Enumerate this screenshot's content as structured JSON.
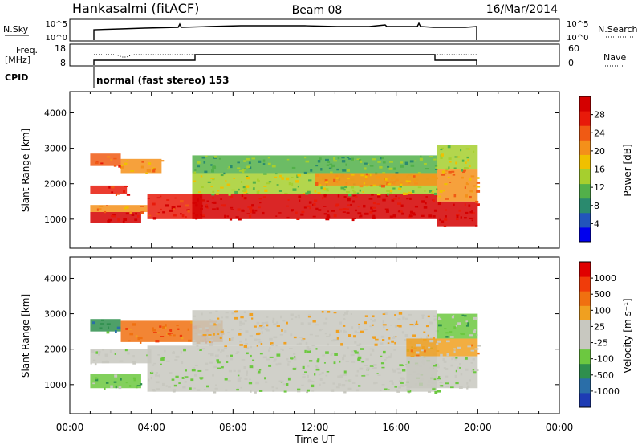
{
  "header": {
    "station": "Hankasalmi (fitACF)",
    "beam": "Beam 08",
    "date": "16/Mar/2014"
  },
  "summary": {
    "nsky_label": "N.Sky",
    "nsearch_label": "N.Search",
    "noise_ticks": [
      "10^5",
      "10^0"
    ],
    "freq_label_1": "Freq.",
    "freq_label_2": "[MHz]",
    "freq_ticks": [
      "18",
      "8"
    ],
    "nave_label": "Nave",
    "nave_ticks": [
      "60",
      "0"
    ],
    "cpid_label": "CPID",
    "cpid_value": "normal (fast stereo) 153"
  },
  "chart_data": [
    {
      "type": "heatmap",
      "title": "",
      "ylabel": "Slant Range [km]",
      "xlabel": "",
      "y_ticks": [
        1000,
        2000,
        3000,
        4000
      ],
      "ylim": [
        180,
        4600
      ],
      "colorbar_label": "Power [dB]",
      "colorbar_ticks": [
        4,
        8,
        12,
        16,
        20,
        24,
        28
      ],
      "colorbar_colors": [
        "#0000ee",
        "#2255bb",
        "#2a8a6e",
        "#52b04a",
        "#a6cf2e",
        "#f0c000",
        "#f4901a",
        "#f05a14",
        "#e81a0a",
        "#d40000"
      ],
      "bands": [
        {
          "t0": 1.0,
          "t1": 3.5,
          "r0": 900,
          "r1": 1200,
          "level": 9
        },
        {
          "t0": 1.0,
          "t1": 3.8,
          "r0": 1200,
          "r1": 1400,
          "level": 6
        },
        {
          "t0": 1.0,
          "t1": 2.8,
          "r0": 1700,
          "r1": 1950,
          "level": 8
        },
        {
          "t0": 1.0,
          "t1": 2.5,
          "r0": 2500,
          "r1": 2850,
          "level": 7
        },
        {
          "t0": 2.5,
          "t1": 4.5,
          "r0": 2300,
          "r1": 2700,
          "level": 6
        },
        {
          "t0": 3.8,
          "t1": 6.5,
          "r0": 1000,
          "r1": 1700,
          "level": 8
        },
        {
          "t0": 6.0,
          "t1": 18.0,
          "r0": 1000,
          "r1": 1700,
          "level": 9
        },
        {
          "t0": 6.0,
          "t1": 18.0,
          "r0": 1700,
          "r1": 2300,
          "level": 4
        },
        {
          "t0": 6.0,
          "t1": 18.0,
          "r0": 2300,
          "r1": 2800,
          "level": 3
        },
        {
          "t0": 12.0,
          "t1": 18.0,
          "r0": 1950,
          "r1": 2300,
          "level": 6
        },
        {
          "t0": 18.0,
          "t1": 20.0,
          "r0": 800,
          "r1": 1500,
          "level": 9
        },
        {
          "t0": 18.0,
          "t1": 20.0,
          "r0": 1500,
          "r1": 2400,
          "level": 6
        },
        {
          "t0": 18.0,
          "t1": 20.0,
          "r0": 2400,
          "r1": 3100,
          "level": 4
        }
      ]
    },
    {
      "type": "heatmap",
      "title": "",
      "ylabel": "Slant Range [km]",
      "xlabel": "Time UT",
      "y_ticks": [
        1000,
        2000,
        3000,
        4000
      ],
      "ylim": [
        180,
        4600
      ],
      "colorbar_label": "Velocity [m s⁻¹]",
      "colorbar_ticks": [
        1000,
        500,
        100,
        25,
        -25,
        -100,
        -500,
        -1000
      ],
      "colorbar_colors": [
        "#1e3cb4",
        "#2a6ea8",
        "#2f8f4e",
        "#6cc840",
        "#c8c8c0",
        "#c8c8c0",
        "#f0a020",
        "#f07010",
        "#f03c0a",
        "#e00000"
      ],
      "bands": [
        {
          "t0": 1.0,
          "t1": 3.5,
          "r0": 900,
          "r1": 1300,
          "level": 3
        },
        {
          "t0": 1.0,
          "t1": 4.0,
          "r0": 1600,
          "r1": 2000,
          "level": 4
        },
        {
          "t0": 1.0,
          "t1": 2.5,
          "r0": 2500,
          "r1": 2850,
          "level": 2
        },
        {
          "t0": 2.5,
          "t1": 7.5,
          "r0": 2200,
          "r1": 2800,
          "level": 7
        },
        {
          "t0": 3.8,
          "t1": 18.0,
          "r0": 800,
          "r1": 2100,
          "level": 4
        },
        {
          "t0": 6.0,
          "t1": 18.0,
          "r0": 2100,
          "r1": 3100,
          "level": 5
        },
        {
          "t0": 16.5,
          "t1": 20.0,
          "r0": 900,
          "r1": 1800,
          "level": 4
        },
        {
          "t0": 16.5,
          "t1": 20.0,
          "r0": 1800,
          "r1": 2300,
          "level": 6
        },
        {
          "t0": 18.0,
          "t1": 20.0,
          "r0": 2300,
          "r1": 3000,
          "level": 3
        }
      ]
    }
  ],
  "x_axis": {
    "label": "Time UT",
    "ticks": [
      "00:00",
      "04:00",
      "08:00",
      "12:00",
      "16:00",
      "20:00",
      "00:00"
    ],
    "tick_hours": [
      0,
      4,
      8,
      12,
      16,
      20,
      24
    ]
  }
}
